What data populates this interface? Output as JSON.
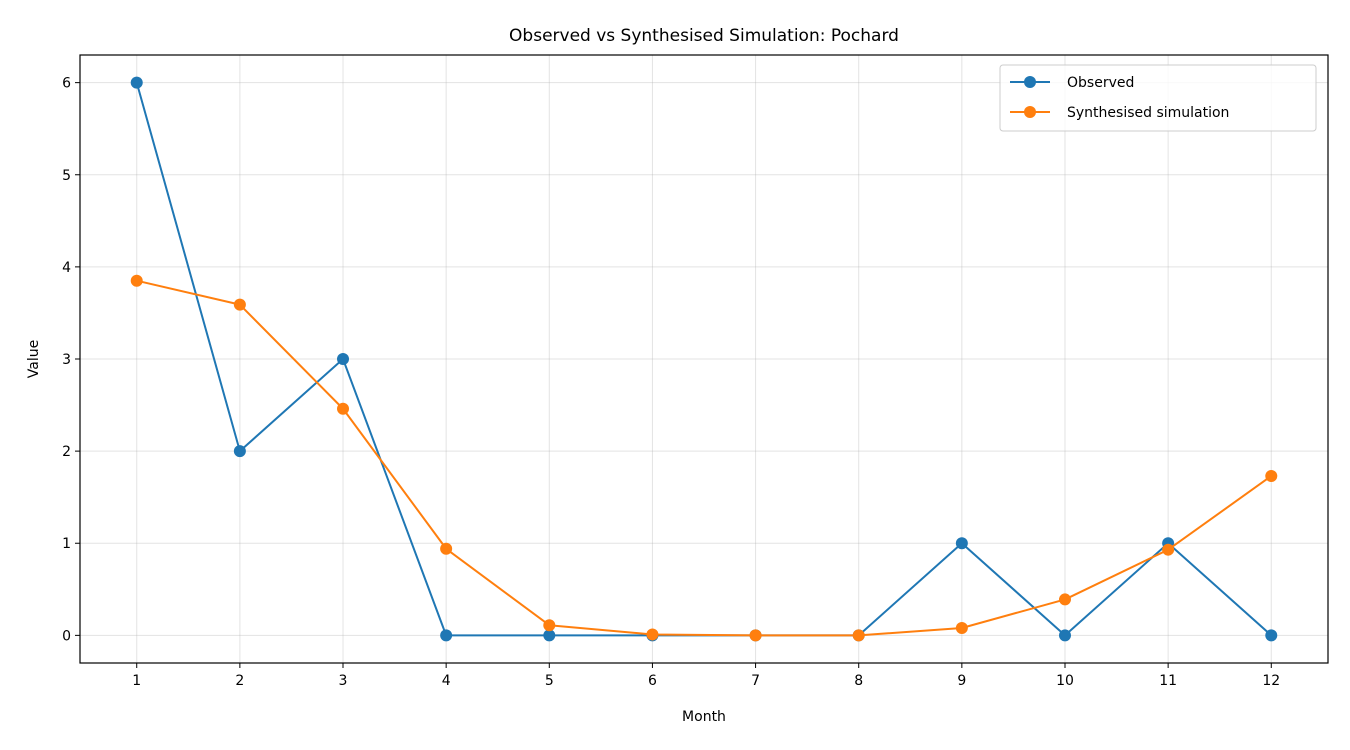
{
  "chart_data": {
    "type": "line",
    "title": "Observed vs Synthesised Simulation: Pochard",
    "xlabel": "Month",
    "ylabel": "Value",
    "x": [
      1,
      2,
      3,
      4,
      5,
      6,
      7,
      8,
      9,
      10,
      11,
      12
    ],
    "xlim": [
      0.45,
      12.55
    ],
    "ylim": [
      -0.3,
      6.3
    ],
    "xticks": [
      1,
      2,
      3,
      4,
      5,
      6,
      7,
      8,
      9,
      10,
      11,
      12
    ],
    "yticks": [
      0,
      1,
      2,
      3,
      4,
      5,
      6
    ],
    "grid": true,
    "legend_position": "top-right",
    "series": [
      {
        "name": "Observed",
        "color": "#1f77b4",
        "values": [
          6,
          2,
          3,
          0,
          0,
          0,
          0,
          0,
          1,
          0,
          1,
          0
        ]
      },
      {
        "name": "Synthesised simulation",
        "color": "#ff7f0e",
        "values": [
          3.85,
          3.59,
          2.46,
          0.94,
          0.11,
          0.01,
          0.0,
          0.0,
          0.08,
          0.39,
          0.93,
          1.73
        ]
      }
    ]
  }
}
